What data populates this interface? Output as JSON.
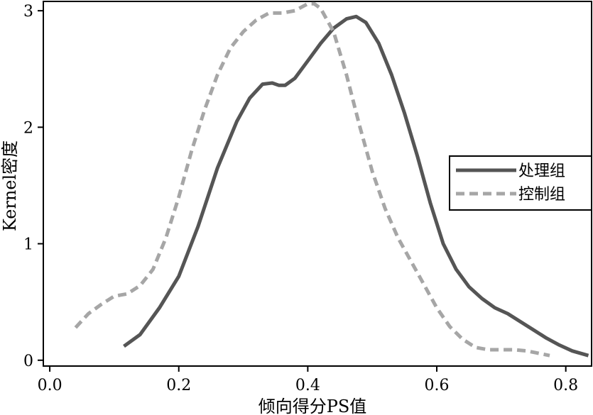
{
  "chart_data": {
    "type": "line",
    "title": "",
    "xlabel": "倾向得分PS值",
    "ylabel": "Kernel密度",
    "xlim": [
      -0.01,
      0.84
    ],
    "ylim": [
      -0.05,
      3.08
    ],
    "xticks": [
      0.0,
      0.2,
      0.4,
      0.6,
      0.8
    ],
    "xtick_labels": [
      "0.0",
      "0.2",
      "0.4",
      "0.6",
      "0.8"
    ],
    "yticks": [
      0,
      1,
      2,
      3
    ],
    "ytick_labels": [
      "0",
      "1",
      "2",
      "3"
    ],
    "grid": false,
    "legend_position": "right",
    "series": [
      {
        "name": "处理组",
        "style": "solid",
        "color": "#555555",
        "x": [
          0.115,
          0.14,
          0.17,
          0.2,
          0.23,
          0.26,
          0.29,
          0.31,
          0.33,
          0.345,
          0.355,
          0.365,
          0.38,
          0.4,
          0.42,
          0.44,
          0.46,
          0.475,
          0.49,
          0.51,
          0.53,
          0.55,
          0.57,
          0.59,
          0.61,
          0.63,
          0.65,
          0.67,
          0.69,
          0.71,
          0.73,
          0.75,
          0.77,
          0.79,
          0.81,
          0.835
        ],
        "y": [
          0.12,
          0.22,
          0.45,
          0.72,
          1.15,
          1.65,
          2.05,
          2.25,
          2.37,
          2.38,
          2.36,
          2.36,
          2.42,
          2.57,
          2.72,
          2.85,
          2.93,
          2.95,
          2.9,
          2.72,
          2.45,
          2.12,
          1.75,
          1.35,
          1.0,
          0.78,
          0.63,
          0.53,
          0.45,
          0.4,
          0.33,
          0.26,
          0.19,
          0.13,
          0.08,
          0.04
        ]
      },
      {
        "name": "控制组",
        "style": "dashed",
        "color": "#a6a6a6",
        "x": [
          0.04,
          0.06,
          0.08,
          0.1,
          0.12,
          0.14,
          0.16,
          0.18,
          0.2,
          0.22,
          0.24,
          0.26,
          0.28,
          0.3,
          0.32,
          0.34,
          0.36,
          0.38,
          0.4,
          0.41,
          0.42,
          0.44,
          0.46,
          0.48,
          0.5,
          0.52,
          0.54,
          0.56,
          0.58,
          0.6,
          0.62,
          0.64,
          0.66,
          0.68,
          0.7,
          0.72,
          0.74,
          0.775
        ],
        "y": [
          0.28,
          0.4,
          0.48,
          0.55,
          0.57,
          0.64,
          0.78,
          1.05,
          1.4,
          1.8,
          2.15,
          2.45,
          2.68,
          2.82,
          2.92,
          2.98,
          2.98,
          3.0,
          3.06,
          3.06,
          3.02,
          2.82,
          2.45,
          2.02,
          1.62,
          1.3,
          1.05,
          0.85,
          0.65,
          0.45,
          0.29,
          0.18,
          0.11,
          0.09,
          0.09,
          0.09,
          0.08,
          0.04
        ]
      }
    ]
  }
}
